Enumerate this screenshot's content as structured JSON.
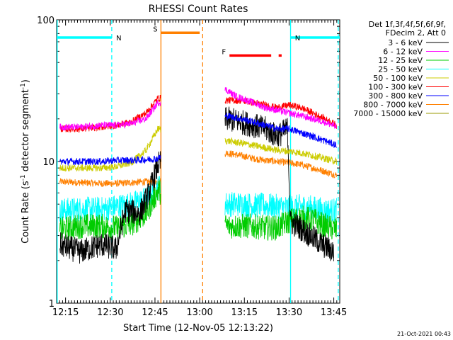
{
  "chart_data": {
    "type": "line",
    "title": "RHESSI Count Rates",
    "xlabel": "Start Time (12-Nov-05 12:13:22)",
    "ylabel_main": "Count Rate (s",
    "ylabel_exp1": "-1",
    "ylabel_mid": " detector segment",
    "ylabel_exp2": "-1",
    "ylabel_end": ")",
    "yscale": "log",
    "ylim": [
      1,
      100
    ],
    "xlim_minutes": [
      12.0,
      107.0
    ],
    "x_ticks": [
      {
        "minute": 15,
        "label": "12:15"
      },
      {
        "minute": 30,
        "label": "12:30"
      },
      {
        "minute": 45,
        "label": "12:45"
      },
      {
        "minute": 60,
        "label": "13:00"
      },
      {
        "minute": 75,
        "label": "13:15"
      },
      {
        "minute": 90,
        "label": "13:30"
      },
      {
        "minute": 105,
        "label": "13:45"
      }
    ],
    "y_ticks": [
      {
        "value": 1,
        "label": "1"
      },
      {
        "value": 10,
        "label": "10"
      },
      {
        "value": 100,
        "label": "100"
      }
    ],
    "legend_header": [
      "Det 1f,3f,4f,5f,6f,9f,",
      "FDecim 2, Att 0"
    ],
    "legend_position": "right",
    "timestamp": "21-Oct-2021 00:43",
    "data_gap_minutes": [
      47.0,
      68.5
    ],
    "series": [
      {
        "name": "3 - 6 keV",
        "color": "#000000",
        "x": [
          13,
          20,
          27,
          32,
          35,
          40,
          43,
          46,
          69,
          74,
          78,
          82,
          86,
          89.5,
          90.5,
          93,
          97,
          101,
          105
        ],
        "values": [
          2.6,
          2.3,
          2.6,
          2.4,
          4.5,
          4.3,
          6.0,
          9.5,
          20,
          19,
          18,
          17,
          15,
          17,
          3.7,
          3.5,
          3.0,
          2.6,
          2.3
        ]
      },
      {
        "name": "6 - 12 keV",
        "color": "#ff00ff",
        "x": [
          13,
          20,
          27,
          32,
          37,
          42,
          46,
          69,
          72,
          78,
          82,
          86,
          90,
          94,
          98,
          102,
          106
        ],
        "values": [
          17.5,
          17.5,
          18,
          18,
          18.5,
          20,
          26,
          32,
          29,
          26,
          24,
          23,
          22,
          21,
          20,
          19,
          17.5
        ]
      },
      {
        "name": "12 - 25 keV",
        "color": "#00cc00",
        "x": [
          13,
          20,
          27,
          32,
          37,
          42,
          46,
          69,
          74,
          78,
          82,
          86,
          90,
          94,
          98,
          102,
          106
        ],
        "values": [
          3.3,
          3.5,
          3.5,
          3.4,
          3.6,
          4.3,
          6.2,
          3.5,
          3.5,
          3.5,
          3.4,
          3.4,
          3.8,
          4.0,
          3.9,
          3.5,
          3.3
        ]
      },
      {
        "name": "25 - 50 keV",
        "color": "#00ffff",
        "x": [
          13,
          20,
          27,
          32,
          37,
          42,
          46,
          69,
          74,
          78,
          82,
          86,
          90,
          94,
          98,
          102,
          106
        ],
        "values": [
          4.5,
          4.6,
          4.6,
          4.8,
          5.0,
          5.4,
          6.6,
          5.0,
          5.0,
          4.9,
          4.9,
          4.8,
          4.7,
          4.8,
          4.7,
          4.5,
          4.5
        ]
      },
      {
        "name": "50 - 100 keV",
        "color": "#cccc00",
        "x": [
          13,
          20,
          27,
          32,
          37,
          42,
          46,
          69,
          74,
          78,
          82,
          86,
          90,
          94,
          98,
          102,
          106
        ],
        "values": [
          9.0,
          9.0,
          9.0,
          9.2,
          9.8,
          12,
          17,
          14,
          13.5,
          13,
          12.5,
          12,
          11.8,
          11.5,
          11,
          10.5,
          10
        ]
      },
      {
        "name": "100 - 300 keV",
        "color": "#ff0000",
        "x": [
          13,
          20,
          27,
          32,
          37,
          42,
          46,
          69,
          74,
          78,
          82,
          86,
          90,
          94,
          98,
          102,
          106
        ],
        "values": [
          17,
          17,
          17.5,
          18,
          19,
          22,
          28,
          27,
          27,
          26,
          25,
          24,
          25,
          24,
          22,
          20,
          18
        ]
      },
      {
        "name": "300 - 800 keV",
        "color": "#0000ff",
        "x": [
          13,
          20,
          27,
          32,
          37,
          42,
          46,
          69,
          74,
          78,
          82,
          86,
          90,
          94,
          98,
          102,
          106
        ],
        "values": [
          10,
          10,
          10,
          10.2,
          10.2,
          10.3,
          10.5,
          21,
          20,
          19,
          18,
          17,
          17,
          16,
          15,
          14,
          13
        ]
      },
      {
        "name": "800 - 7000 keV",
        "color": "#ff8000",
        "x": [
          13,
          20,
          27,
          32,
          37,
          42,
          46,
          69,
          74,
          78,
          82,
          86,
          90,
          94,
          98,
          102,
          106
        ],
        "values": [
          7.2,
          7.1,
          7.0,
          7.0,
          7.1,
          7.2,
          7.2,
          11.5,
          11,
          10.5,
          10.2,
          10,
          9.8,
          9.5,
          9.0,
          8.5,
          8.0
        ]
      },
      {
        "name": "7000 - 15000 keV",
        "color": "#999900",
        "x": [],
        "values": []
      }
    ],
    "annotations": [
      {
        "label": "N",
        "type": "night",
        "color": "#00ffff",
        "bar": [
          12.0,
          30.5
        ],
        "bar_y": 75,
        "edges": [
          12.2,
          30.5
        ]
      },
      {
        "label": "N",
        "type": "night",
        "color": "#00ffff",
        "bar": [
          90.5,
          107.0
        ],
        "bar_y": 75,
        "edges": [
          90.5,
          106.5
        ]
      },
      {
        "label": "S",
        "type": "saa",
        "color": "#ff8000",
        "bar": [
          47.0,
          60.0
        ],
        "bar_y": 81,
        "edges": [
          47.0,
          61.0
        ]
      },
      {
        "label": "F",
        "type": "flare",
        "color": "#ff0000",
        "segments": [
          [
            70.0,
            84.0
          ],
          [
            86.5,
            87.5
          ]
        ],
        "bar_y": 56
      }
    ]
  }
}
